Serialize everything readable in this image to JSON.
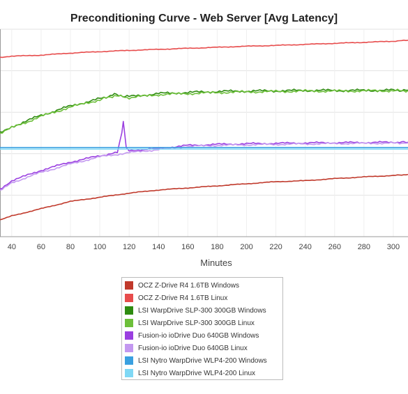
{
  "chart_data": {
    "type": "line",
    "title": "Preconditioning Curve - Web Server [Avg Latency]",
    "xlabel": "Minutes",
    "ylabel": "",
    "xlim": [
      32,
      310
    ],
    "ylim": [
      0,
      10
    ],
    "x_ticks": [
      40,
      60,
      80,
      100,
      120,
      140,
      160,
      180,
      200,
      220,
      240,
      260,
      280,
      300
    ],
    "grid": true,
    "legend_position": "bottom",
    "series": [
      {
        "name": "OCZ Z-Drive R4 1.6TB Windows",
        "color": "#c0392b",
        "x": [
          32,
          40,
          60,
          80,
          100,
          120,
          140,
          160,
          180,
          200,
          220,
          240,
          260,
          280,
          300,
          310
        ],
        "y": [
          0.8,
          1.0,
          1.35,
          1.7,
          1.9,
          2.1,
          2.25,
          2.35,
          2.45,
          2.55,
          2.65,
          2.7,
          2.8,
          2.88,
          2.95,
          3.0
        ]
      },
      {
        "name": "OCZ Z-Drive R4 1.6TB Linux",
        "color": "#e74c4c",
        "x": [
          32,
          40,
          60,
          80,
          100,
          120,
          140,
          160,
          180,
          200,
          220,
          240,
          260,
          280,
          300,
          310
        ],
        "y": [
          8.65,
          8.7,
          8.75,
          8.85,
          8.92,
          8.98,
          9.03,
          9.08,
          9.13,
          9.18,
          9.22,
          9.27,
          9.32,
          9.37,
          9.42,
          9.47
        ]
      },
      {
        "name": "LSI WarpDrive SLP-300 300GB Windows",
        "color": "#2e8b10",
        "x": [
          32,
          40,
          60,
          80,
          100,
          110,
          120,
          140,
          160,
          180,
          200,
          220,
          240,
          260,
          280,
          300,
          310
        ],
        "y": [
          5.0,
          5.3,
          5.85,
          6.3,
          6.65,
          6.85,
          6.75,
          6.9,
          6.95,
          7.0,
          7.02,
          7.03,
          7.05,
          7.05,
          7.05,
          7.06,
          7.06
        ]
      },
      {
        "name": "LSI WarpDrive SLP-300 300GB Linux",
        "color": "#6dbf3a",
        "x": [
          32,
          40,
          60,
          80,
          100,
          110,
          120,
          140,
          160,
          180,
          200,
          220,
          240,
          260,
          280,
          300,
          310
        ],
        "y": [
          4.95,
          5.25,
          5.8,
          6.25,
          6.6,
          6.8,
          6.7,
          6.85,
          6.9,
          6.95,
          6.98,
          7.0,
          7.02,
          7.02,
          7.03,
          7.04,
          7.04
        ]
      },
      {
        "name": "Fusion-io ioDrive Duo 640GB Windows",
        "color": "#9a3fe0",
        "x": [
          32,
          40,
          60,
          80,
          100,
          112,
          115,
          116,
          118,
          120,
          140,
          160,
          180,
          200,
          220,
          240,
          260,
          280,
          300,
          310
        ],
        "y": [
          2.3,
          2.7,
          3.2,
          3.6,
          3.9,
          4.05,
          5.0,
          5.6,
          4.3,
          4.15,
          4.25,
          4.4,
          4.45,
          4.48,
          4.5,
          4.52,
          4.53,
          4.54,
          4.55,
          4.55
        ]
      },
      {
        "name": "Fusion-io ioDrive Duo 640GB Linux",
        "color": "#c398f0",
        "x": [
          32,
          40,
          60,
          80,
          100,
          120,
          140,
          160,
          180,
          200,
          220,
          240,
          260,
          280,
          300,
          310
        ],
        "y": [
          2.2,
          2.6,
          3.1,
          3.5,
          3.85,
          4.05,
          4.2,
          4.35,
          4.4,
          4.43,
          4.45,
          4.47,
          4.49,
          4.5,
          4.51,
          4.52
        ]
      },
      {
        "name": "LSI Nytro WarpDrive WLP4-200 Windows",
        "color": "#3aa0e0",
        "x": [
          32,
          310
        ],
        "y": [
          4.3,
          4.3
        ]
      },
      {
        "name": "LSI Nytro WarpDrive WLP4-200 Linux",
        "color": "#7fd8f5",
        "x": [
          32,
          310
        ],
        "y": [
          4.22,
          4.22
        ]
      }
    ]
  }
}
